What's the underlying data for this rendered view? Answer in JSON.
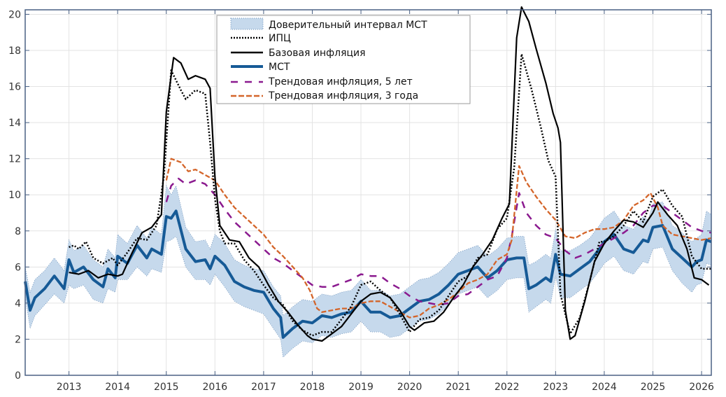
{
  "chart_data": {
    "type": "line",
    "title": "",
    "xlabel": "",
    "ylabel": "",
    "xlim": [
      2012.1,
      2026.2
    ],
    "ylim": [
      0,
      20.25
    ],
    "grid": true,
    "legend_placement": "top-center",
    "xticks": [
      2013,
      2014,
      2015,
      2016,
      2017,
      2018,
      2019,
      2020,
      2021,
      2022,
      2023,
      2024,
      2025,
      2026
    ],
    "yticks": [
      0,
      2,
      4,
      6,
      8,
      10,
      12,
      14,
      16,
      18,
      20
    ],
    "band": {
      "name": "Доверительный интервал МСТ",
      "color": "#c6d9ec",
      "x": [
        2012.1,
        2012.2,
        2012.3,
        2012.5,
        2012.7,
        2012.9,
        2013.0,
        2013.1,
        2013.3,
        2013.5,
        2013.7,
        2013.8,
        2013.95,
        2014.0,
        2014.2,
        2014.4,
        2014.6,
        2014.7,
        2014.9,
        2015.0,
        2015.1,
        2015.2,
        2015.4,
        2015.6,
        2015.8,
        2015.9,
        2016.0,
        2016.2,
        2016.4,
        2016.6,
        2016.8,
        2017.0,
        2017.2,
        2017.35,
        2017.4,
        2017.6,
        2017.8,
        2018.0,
        2018.2,
        2018.4,
        2018.6,
        2018.8,
        2019.0,
        2019.2,
        2019.4,
        2019.6,
        2019.8,
        2020.0,
        2020.2,
        2020.4,
        2020.6,
        2020.8,
        2021.0,
        2021.2,
        2021.4,
        2021.6,
        2021.8,
        2022.0,
        2022.2,
        2022.35,
        2022.45,
        2022.6,
        2022.8,
        2022.9,
        2023.0,
        2023.1,
        2023.3,
        2023.5,
        2023.7,
        2023.9,
        2024.0,
        2024.2,
        2024.4,
        2024.6,
        2024.8,
        2024.9,
        2025.0,
        2025.2,
        2025.4,
        2025.6,
        2025.8,
        2025.9,
        2026.0,
        2026.1,
        2026.2
      ],
      "lower": [
        4.4,
        2.6,
        3.3,
        3.9,
        4.5,
        4.0,
        5.0,
        4.8,
        5.0,
        4.2,
        4.0,
        4.8,
        4.6,
        5.3,
        5.3,
        6.0,
        5.5,
        5.9,
        5.7,
        7.4,
        7.5,
        7.7,
        6.0,
        5.3,
        5.3,
        5.0,
        5.6,
        4.9,
        4.1,
        3.8,
        3.6,
        3.4,
        2.6,
        2.0,
        1.0,
        1.5,
        1.9,
        1.8,
        2.2,
        2.1,
        2.3,
        2.4,
        3.0,
        2.4,
        2.4,
        2.1,
        2.2,
        2.6,
        3.0,
        3.1,
        3.4,
        3.9,
        4.5,
        4.7,
        4.9,
        4.3,
        4.7,
        5.3,
        5.4,
        5.4,
        3.5,
        3.8,
        4.2,
        4.0,
        5.5,
        4.3,
        4.3,
        4.7,
        5.1,
        5.8,
        6.2,
        6.6,
        5.8,
        5.6,
        6.3,
        6.2,
        7.0,
        7.1,
        5.8,
        5.1,
        4.6,
        5.0,
        5.1,
        6.2,
        6.1
      ],
      "upper": [
        6.0,
        4.6,
        5.3,
        5.8,
        6.5,
        5.8,
        7.5,
        6.9,
        7.2,
        6.4,
        6.0,
        7.0,
        6.5,
        7.8,
        7.3,
        8.3,
        7.6,
        8.2,
        7.8,
        10.5,
        10.0,
        10.5,
        8.2,
        7.4,
        7.5,
        7.0,
        7.8,
        7.3,
        6.4,
        6.1,
        5.9,
        5.8,
        4.9,
        4.4,
        3.3,
        3.8,
        4.2,
        4.1,
        4.5,
        4.4,
        4.6,
        4.7,
        5.3,
        4.7,
        4.7,
        4.4,
        4.5,
        4.9,
        5.3,
        5.4,
        5.7,
        6.2,
        6.8,
        7.0,
        7.2,
        6.6,
        7.0,
        7.6,
        7.7,
        7.7,
        6.1,
        6.3,
        6.7,
        6.5,
        8.1,
        6.9,
        6.9,
        7.2,
        7.6,
        8.3,
        8.7,
        9.1,
        8.3,
        8.1,
        8.8,
        8.6,
        9.5,
        9.6,
        8.3,
        7.9,
        7.4,
        7.6,
        7.8,
        9.1,
        8.9
      ]
    },
    "series": [
      {
        "name": "ИПЦ",
        "color": "#000000",
        "style": "dotted",
        "x": [
          2013.0,
          2013.1,
          2013.2,
          2013.35,
          2013.5,
          2013.7,
          2013.9,
          2014.0,
          2014.2,
          2014.4,
          2014.6,
          2014.8,
          2014.95,
          2015.1,
          2015.3,
          2015.4,
          2015.6,
          2015.8,
          2015.9,
          2016.0,
          2016.1,
          2016.2,
          2016.4,
          2016.6,
          2016.8,
          2017.0,
          2017.2,
          2017.4,
          2017.6,
          2017.8,
          2018.0,
          2018.2,
          2018.4,
          2018.6,
          2018.8,
          2019.0,
          2019.2,
          2019.4,
          2019.6,
          2019.8,
          2020.0,
          2020.2,
          2020.4,
          2020.6,
          2020.8,
          2021.0,
          2021.2,
          2021.4,
          2021.6,
          2021.8,
          2022.0,
          2022.15,
          2022.3,
          2022.5,
          2022.7,
          2022.85,
          2023.0,
          2023.1,
          2023.3,
          2023.5,
          2023.7,
          2023.9,
          2024.0,
          2024.2,
          2024.4,
          2024.6,
          2024.8,
          2025.0,
          2025.2,
          2025.4,
          2025.6,
          2025.8,
          2026.0,
          2026.2
        ],
        "y": [
          7.1,
          7.2,
          7.0,
          7.4,
          6.5,
          6.2,
          6.5,
          6.1,
          6.8,
          7.6,
          7.5,
          8.3,
          11.0,
          16.9,
          15.8,
          15.3,
          15.8,
          15.6,
          12.9,
          9.8,
          8.0,
          7.3,
          7.3,
          6.4,
          5.8,
          5.0,
          4.3,
          3.9,
          3.0,
          2.5,
          2.2,
          2.4,
          2.4,
          3.1,
          3.8,
          5.0,
          5.2,
          4.7,
          4.3,
          3.4,
          2.4,
          3.1,
          3.2,
          3.6,
          4.4,
          5.2,
          5.5,
          6.5,
          6.7,
          8.1,
          8.7,
          11.5,
          17.8,
          15.9,
          13.7,
          11.9,
          11.0,
          4.5,
          2.3,
          3.2,
          5.2,
          7.4,
          7.4,
          7.7,
          8.3,
          9.1,
          8.5,
          9.9,
          10.3,
          9.4,
          8.8,
          6.6,
          5.9,
          5.9
        ]
      },
      {
        "name": "Базовая инфляция",
        "color": "#000000",
        "style": "solid",
        "x": [
          2013.0,
          2013.2,
          2013.4,
          2013.6,
          2013.8,
          2014.0,
          2014.1,
          2014.3,
          2014.5,
          2014.7,
          2014.9,
          2015.0,
          2015.15,
          2015.3,
          2015.45,
          2015.6,
          2015.8,
          2015.9,
          2016.0,
          2016.1,
          2016.3,
          2016.5,
          2016.7,
          2016.9,
          2017.1,
          2017.3,
          2017.5,
          2017.7,
          2017.9,
          2018.0,
          2018.2,
          2018.4,
          2018.6,
          2018.8,
          2019.0,
          2019.2,
          2019.4,
          2019.6,
          2019.8,
          2020.0,
          2020.1,
          2020.3,
          2020.5,
          2020.7,
          2020.9,
          2021.1,
          2021.3,
          2021.5,
          2021.7,
          2021.9,
          2022.05,
          2022.2,
          2022.3,
          2022.45,
          2022.6,
          2022.8,
          2022.95,
          2023.05,
          2023.1,
          2023.2,
          2023.3,
          2023.4,
          2023.6,
          2023.8,
          2024.0,
          2024.2,
          2024.4,
          2024.6,
          2024.8,
          2025.0,
          2025.1,
          2025.3,
          2025.5,
          2025.7,
          2025.85,
          2026.0,
          2026.15
        ],
        "y": [
          5.7,
          5.6,
          5.8,
          5.4,
          5.6,
          5.5,
          5.6,
          6.8,
          7.9,
          8.2,
          8.9,
          14.6,
          17.6,
          17.3,
          16.4,
          16.6,
          16.4,
          15.9,
          11.0,
          8.3,
          7.5,
          7.4,
          6.5,
          6.0,
          5.0,
          4.1,
          3.5,
          2.8,
          2.2,
          2.0,
          1.9,
          2.3,
          2.7,
          3.4,
          4.1,
          4.5,
          4.6,
          4.3,
          3.6,
          2.7,
          2.5,
          2.9,
          3.0,
          3.5,
          4.3,
          5.0,
          6.0,
          6.7,
          7.5,
          8.7,
          9.5,
          18.7,
          20.4,
          19.6,
          18.1,
          16.2,
          14.5,
          13.7,
          12.9,
          3.6,
          2.0,
          2.2,
          4.1,
          6.3,
          7.3,
          8.0,
          8.6,
          8.5,
          8.2,
          9.0,
          9.6,
          8.9,
          8.3,
          7.0,
          5.4,
          5.3,
          5.0
        ]
      },
      {
        "name": "МСТ",
        "color": "#165a96",
        "style": "solid-thick",
        "x": [
          2012.1,
          2012.2,
          2012.3,
          2012.5,
          2012.7,
          2012.9,
          2013.0,
          2013.1,
          2013.3,
          2013.5,
          2013.7,
          2013.8,
          2013.95,
          2014.0,
          2014.2,
          2014.4,
          2014.6,
          2014.7,
          2014.9,
          2015.0,
          2015.1,
          2015.2,
          2015.4,
          2015.6,
          2015.8,
          2015.9,
          2016.0,
          2016.2,
          2016.4,
          2016.6,
          2016.8,
          2017.0,
          2017.2,
          2017.35,
          2017.4,
          2017.6,
          2017.8,
          2018.0,
          2018.2,
          2018.4,
          2018.6,
          2018.8,
          2019.0,
          2019.2,
          2019.4,
          2019.6,
          2019.8,
          2020.0,
          2020.2,
          2020.4,
          2020.6,
          2020.8,
          2021.0,
          2021.2,
          2021.4,
          2021.6,
          2021.8,
          2022.0,
          2022.2,
          2022.35,
          2022.45,
          2022.6,
          2022.8,
          2022.9,
          2023.0,
          2023.1,
          2023.3,
          2023.5,
          2023.7,
          2023.9,
          2024.0,
          2024.2,
          2024.4,
          2024.6,
          2024.8,
          2024.9,
          2025.0,
          2025.2,
          2025.4,
          2025.6,
          2025.8,
          2025.9,
          2026.0,
          2026.1,
          2026.2
        ],
        "y": [
          5.2,
          3.6,
          4.3,
          4.8,
          5.5,
          4.8,
          6.4,
          5.7,
          6.0,
          5.3,
          4.9,
          5.9,
          5.4,
          6.6,
          6.2,
          7.2,
          6.5,
          7.0,
          6.7,
          8.8,
          8.7,
          9.1,
          7.0,
          6.3,
          6.4,
          5.9,
          6.6,
          6.1,
          5.2,
          4.9,
          4.7,
          4.6,
          3.7,
          3.2,
          2.1,
          2.6,
          3.0,
          2.9,
          3.3,
          3.2,
          3.4,
          3.5,
          4.1,
          3.5,
          3.5,
          3.2,
          3.3,
          3.7,
          4.1,
          4.2,
          4.5,
          5.0,
          5.6,
          5.8,
          6.0,
          5.4,
          5.8,
          6.4,
          6.5,
          6.5,
          4.8,
          5.0,
          5.4,
          5.2,
          6.7,
          5.6,
          5.5,
          5.9,
          6.3,
          7.0,
          7.4,
          7.8,
          7.0,
          6.8,
          7.5,
          7.4,
          8.2,
          8.3,
          7.0,
          6.5,
          6.0,
          6.3,
          6.4,
          7.5,
          7.4
        ]
      },
      {
        "name": "Трендовая инфляция, 5 лет",
        "color": "#8b1a8f",
        "style": "dashed",
        "x": [
          2015.0,
          2015.1,
          2015.25,
          2015.4,
          2015.6,
          2015.8,
          2016.0,
          2016.2,
          2016.4,
          2016.6,
          2016.8,
          2017.0,
          2017.2,
          2017.4,
          2017.6,
          2017.8,
          2018.0,
          2018.2,
          2018.4,
          2018.6,
          2018.8,
          2019.0,
          2019.2,
          2019.4,
          2019.6,
          2019.8,
          2020.0,
          2020.2,
          2020.4,
          2020.6,
          2020.8,
          2021.0,
          2021.2,
          2021.4,
          2021.6,
          2021.8,
          2022.0,
          2022.1,
          2022.25,
          2022.4,
          2022.6,
          2022.8,
          2023.0,
          2023.2,
          2023.4,
          2023.6,
          2023.8,
          2024.0,
          2024.2,
          2024.4,
          2024.6,
          2024.8,
          2025.0,
          2025.2,
          2025.4,
          2025.6,
          2025.8,
          2026.0,
          2026.2
        ],
        "y": [
          9.6,
          10.5,
          10.9,
          10.6,
          10.8,
          10.6,
          10.0,
          9.2,
          8.5,
          8.0,
          7.5,
          7.0,
          6.5,
          6.2,
          5.8,
          5.4,
          5.0,
          4.9,
          4.9,
          5.1,
          5.3,
          5.6,
          5.5,
          5.5,
          5.1,
          4.8,
          4.4,
          4.1,
          4.0,
          3.9,
          4.0,
          4.4,
          4.5,
          4.9,
          5.3,
          5.5,
          6.5,
          7.7,
          10.1,
          9.0,
          8.3,
          7.8,
          7.6,
          6.9,
          6.5,
          6.7,
          7.0,
          7.3,
          7.6,
          7.9,
          8.3,
          9.0,
          9.4,
          9.4,
          9.0,
          8.6,
          8.2,
          8.0,
          7.9
        ]
      },
      {
        "name": "Трендовая инфляция, 3 года",
        "color": "#d4652a",
        "style": "dashdot",
        "x": [
          2015.0,
          2015.1,
          2015.3,
          2015.45,
          2015.6,
          2015.8,
          2016.0,
          2016.2,
          2016.4,
          2016.6,
          2016.8,
          2017.0,
          2017.2,
          2017.4,
          2017.6,
          2017.8,
          2017.95,
          2018.1,
          2018.2,
          2018.4,
          2018.6,
          2018.8,
          2019.0,
          2019.2,
          2019.4,
          2019.6,
          2019.8,
          2020.0,
          2020.2,
          2020.4,
          2020.6,
          2020.8,
          2021.0,
          2021.2,
          2021.4,
          2021.6,
          2021.8,
          2022.0,
          2022.1,
          2022.25,
          2022.4,
          2022.6,
          2022.8,
          2023.0,
          2023.2,
          2023.4,
          2023.6,
          2023.8,
          2024.0,
          2024.2,
          2024.4,
          2024.6,
          2024.8,
          2024.95,
          2025.1,
          2025.2,
          2025.4,
          2025.6,
          2025.8,
          2026.0,
          2026.2
        ],
        "y": [
          10.8,
          12.0,
          11.8,
          11.3,
          11.4,
          11.1,
          10.8,
          10.0,
          9.3,
          8.8,
          8.3,
          7.8,
          7.1,
          6.6,
          6.0,
          5.4,
          4.7,
          3.7,
          3.5,
          3.6,
          3.7,
          3.7,
          4.0,
          4.1,
          4.1,
          3.8,
          3.5,
          3.2,
          3.3,
          3.7,
          3.9,
          4.2,
          4.6,
          5.1,
          5.3,
          5.6,
          6.4,
          6.7,
          7.5,
          11.6,
          10.7,
          9.9,
          9.2,
          8.6,
          7.7,
          7.6,
          7.9,
          8.1,
          8.1,
          8.2,
          8.6,
          9.4,
          9.7,
          10.1,
          9.3,
          8.3,
          7.8,
          7.7,
          7.6,
          7.5,
          7.6
        ]
      }
    ]
  }
}
